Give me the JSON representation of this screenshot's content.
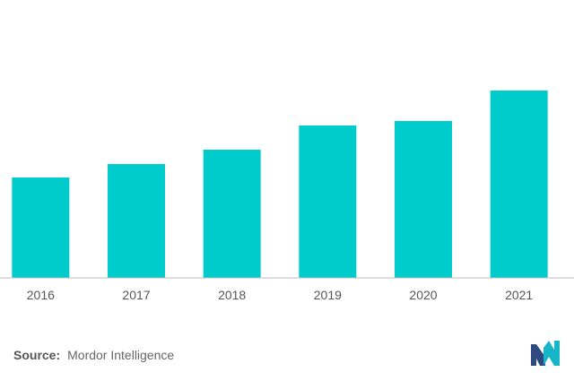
{
  "chart_data": {
    "type": "bar",
    "categories": [
      "2016",
      "2017",
      "2018",
      "2019",
      "2020",
      "2021"
    ],
    "values": [
      112,
      127,
      143,
      170,
      175,
      209
    ],
    "ylim": [
      0,
      250
    ],
    "title": "",
    "xlabel": "",
    "ylabel": "",
    "grid": false,
    "bar_color": "#00CCCC",
    "axis_color": "#BBBBBB"
  },
  "source": {
    "label": "Source:",
    "text": "Mordor Intelligence"
  },
  "logo": {
    "icon": "mordor-intelligence-logo-icon",
    "colors": [
      "#2E4A80",
      "#16B5C8"
    ]
  }
}
